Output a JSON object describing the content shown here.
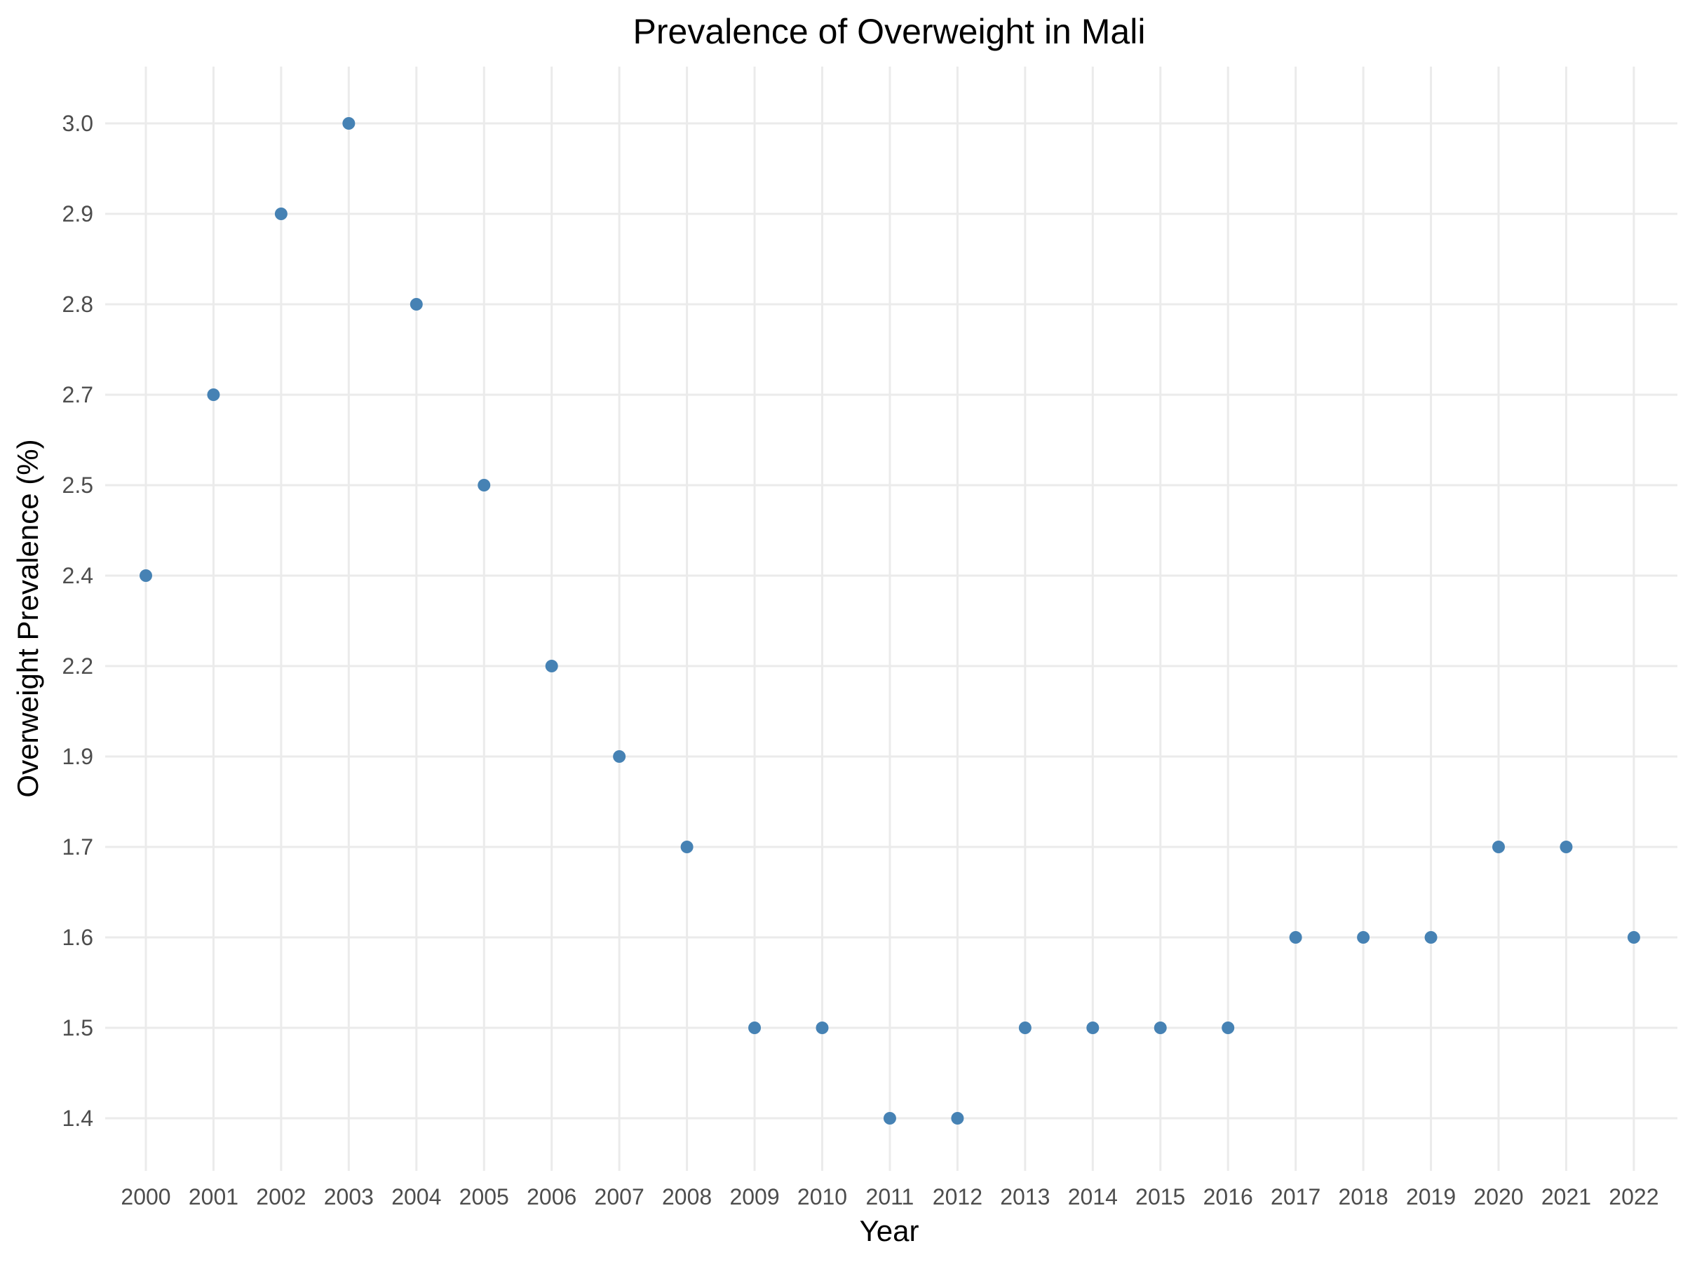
{
  "chart_data": {
    "type": "scatter",
    "title": "Prevalence of Overweight in Mali",
    "xlabel": "Year",
    "ylabel": "Overweight Prevalence (%)",
    "x_ticks": [
      "2000",
      "2001",
      "2002",
      "2003",
      "2004",
      "2005",
      "2006",
      "2007",
      "2008",
      "2009",
      "2010",
      "2011",
      "2012",
      "2013",
      "2014",
      "2015",
      "2016",
      "2017",
      "2018",
      "2019",
      "2020",
      "2021",
      "2022"
    ],
    "y_ticks": [
      "1.4",
      "1.5",
      "1.6",
      "1.7",
      "1.9",
      "2.2",
      "2.4",
      "2.5",
      "2.7",
      "2.8",
      "2.9",
      "3.0"
    ],
    "y_axis_note": "categorical (discrete) y axis, ordered ascending",
    "points": [
      {
        "x": "2000",
        "y": "2.4"
      },
      {
        "x": "2001",
        "y": "2.7"
      },
      {
        "x": "2002",
        "y": "2.9"
      },
      {
        "x": "2003",
        "y": "3.0"
      },
      {
        "x": "2004",
        "y": "2.8"
      },
      {
        "x": "2005",
        "y": "2.5"
      },
      {
        "x": "2006",
        "y": "2.2"
      },
      {
        "x": "2007",
        "y": "1.9"
      },
      {
        "x": "2008",
        "y": "1.7"
      },
      {
        "x": "2009",
        "y": "1.5"
      },
      {
        "x": "2010",
        "y": "1.5"
      },
      {
        "x": "2011",
        "y": "1.4"
      },
      {
        "x": "2012",
        "y": "1.4"
      },
      {
        "x": "2013",
        "y": "1.5"
      },
      {
        "x": "2014",
        "y": "1.5"
      },
      {
        "x": "2015",
        "y": "1.5"
      },
      {
        "x": "2016",
        "y": "1.5"
      },
      {
        "x": "2017",
        "y": "1.6"
      },
      {
        "x": "2018",
        "y": "1.6"
      },
      {
        "x": "2019",
        "y": "1.6"
      },
      {
        "x": "2020",
        "y": "1.7"
      },
      {
        "x": "2021",
        "y": "1.7"
      },
      {
        "x": "2022",
        "y": "1.6"
      }
    ],
    "grid": true,
    "legend": "none",
    "point_color": "#4682b4",
    "grid_color": "#ebebeb"
  }
}
